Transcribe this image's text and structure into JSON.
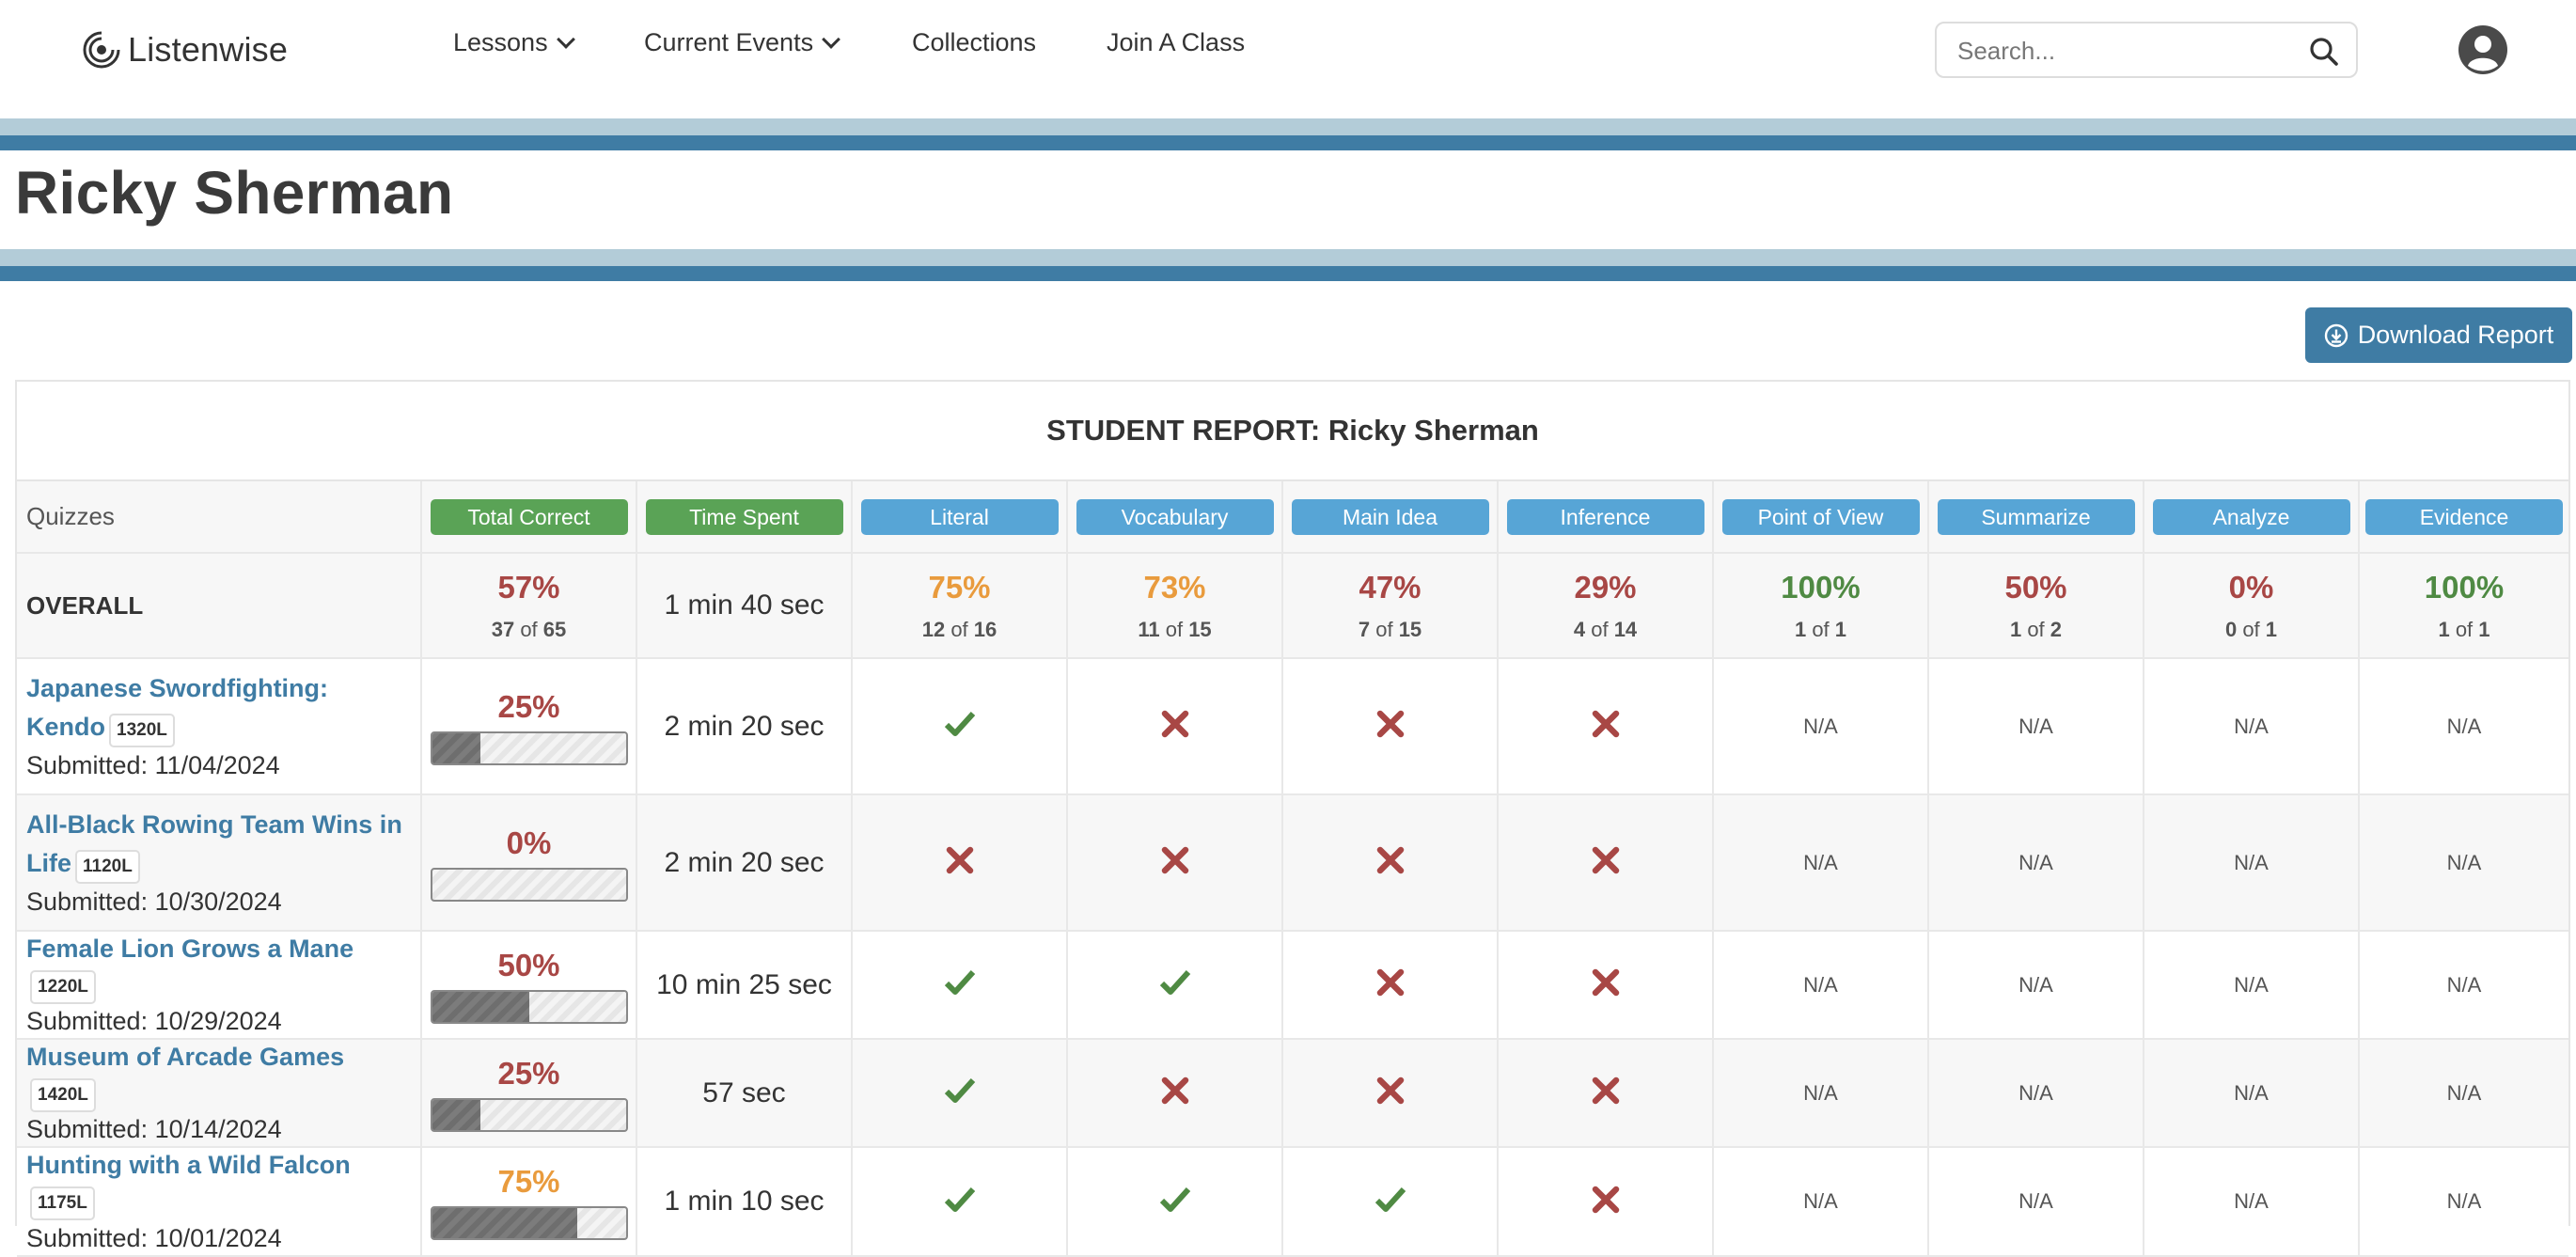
{
  "nav": {
    "logo_text": "Listenwise",
    "items": [
      {
        "label": "Lessons",
        "dropdown": true
      },
      {
        "label": "Current Events",
        "dropdown": true
      },
      {
        "label": "Collections",
        "dropdown": false
      },
      {
        "label": "Join A Class",
        "dropdown": false
      }
    ],
    "search_placeholder": "Search...",
    "search_value": ""
  },
  "page_title": "Ricky Sherman",
  "download_label": "Download Report",
  "report": {
    "title": "STUDENT REPORT: Ricky Sherman",
    "quizzes_label": "Quizzes",
    "columns": [
      {
        "label": "Total Correct",
        "color": "#5aa356"
      },
      {
        "label": "Time Spent",
        "color": "#5aa356"
      },
      {
        "label": "Literal",
        "color": "#57a5d6"
      },
      {
        "label": "Vocabulary",
        "color": "#57a5d6"
      },
      {
        "label": "Main Idea",
        "color": "#57a5d6"
      },
      {
        "label": "Inference",
        "color": "#57a5d6"
      },
      {
        "label": "Point of View",
        "color": "#57a5d6"
      },
      {
        "label": "Summarize",
        "color": "#57a5d6"
      },
      {
        "label": "Analyze",
        "color": "#57a5d6"
      },
      {
        "label": "Evidence",
        "color": "#57a5d6"
      }
    ],
    "overall": {
      "label": "OVERALL",
      "total": {
        "pct": "57%",
        "correct": "37",
        "of": "of",
        "total": "65",
        "tone": "red"
      },
      "time": "1 min 40 sec",
      "skills": [
        {
          "pct": "75%",
          "correct": "12",
          "of": "of",
          "total": "16",
          "tone": "orange"
        },
        {
          "pct": "73%",
          "correct": "11",
          "of": "of",
          "total": "15",
          "tone": "orange"
        },
        {
          "pct": "47%",
          "correct": "7",
          "of": "of",
          "total": "15",
          "tone": "red"
        },
        {
          "pct": "29%",
          "correct": "4",
          "of": "of",
          "total": "14",
          "tone": "red"
        },
        {
          "pct": "100%",
          "correct": "1",
          "of": "of",
          "total": "1",
          "tone": "green"
        },
        {
          "pct": "50%",
          "correct": "1",
          "of": "of",
          "total": "2",
          "tone": "red"
        },
        {
          "pct": "0%",
          "correct": "0",
          "of": "of",
          "total": "1",
          "tone": "red"
        },
        {
          "pct": "100%",
          "correct": "1",
          "of": "of",
          "total": "1",
          "tone": "green"
        }
      ]
    },
    "quizzes": [
      {
        "title_line1": "Japanese Swordfighting:",
        "title_line2": "Kendo",
        "lexile": "1320L",
        "submitted": "Submitted: 11/04/2024",
        "pct": "25%",
        "progress": 0.25,
        "tone": "red",
        "time": "2 min 20 sec",
        "marks": [
          "check",
          "cross",
          "cross",
          "cross",
          "N/A",
          "N/A",
          "N/A",
          "N/A"
        ]
      },
      {
        "title_line1": "All-Black Rowing Team Wins in",
        "title_line2": "Life",
        "lexile": "1120L",
        "submitted": "Submitted: 10/30/2024",
        "pct": "0%",
        "progress": 0.0,
        "tone": "red",
        "time": "2 min 20 sec",
        "marks": [
          "cross",
          "cross",
          "cross",
          "cross",
          "N/A",
          "N/A",
          "N/A",
          "N/A"
        ]
      },
      {
        "title_line1": "Female Lion Grows a Mane",
        "title_line2": "",
        "lexile": "1220L",
        "submitted": "Submitted: 10/29/2024",
        "pct": "50%",
        "progress": 0.5,
        "tone": "red",
        "time": "10 min 25 sec",
        "marks": [
          "check",
          "check",
          "cross",
          "cross",
          "N/A",
          "N/A",
          "N/A",
          "N/A"
        ]
      },
      {
        "title_line1": "Museum of Arcade Games",
        "title_line2": "",
        "lexile": "1420L",
        "submitted": "Submitted: 10/14/2024",
        "pct": "25%",
        "progress": 0.25,
        "tone": "red",
        "time": "57 sec",
        "marks": [
          "check",
          "cross",
          "cross",
          "cross",
          "N/A",
          "N/A",
          "N/A",
          "N/A"
        ]
      },
      {
        "title_line1": "Hunting with a Wild Falcon",
        "title_line2": "",
        "lexile": "1175L",
        "submitted": "Submitted: 10/01/2024",
        "pct": "75%",
        "progress": 0.75,
        "tone": "orange",
        "time": "1 min 10 sec",
        "marks": [
          "check",
          "check",
          "check",
          "cross",
          "N/A",
          "N/A",
          "N/A",
          "N/A"
        ]
      }
    ]
  }
}
